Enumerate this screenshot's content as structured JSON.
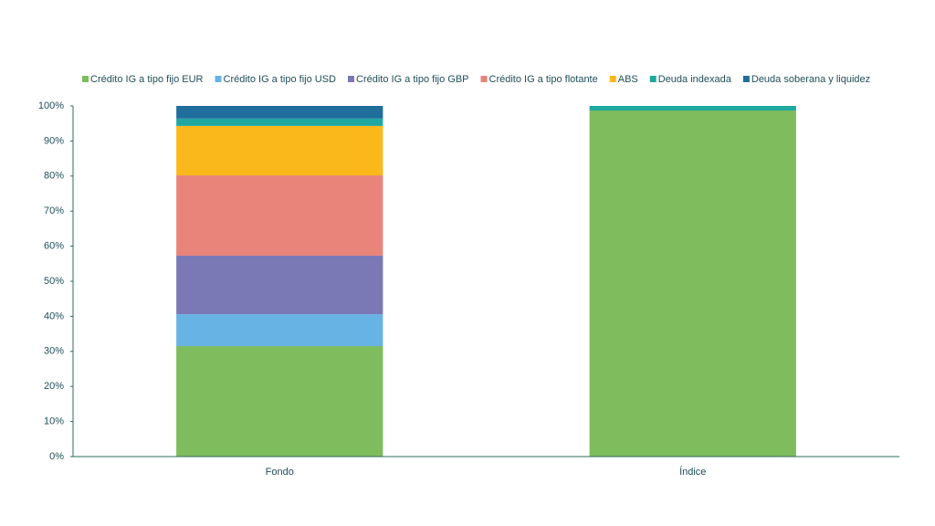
{
  "chart_data": {
    "type": "stacked_bar",
    "categories": [
      "Fondo",
      "Índice"
    ],
    "series": [
      {
        "name": "Crédito IG a tipo fijo EUR",
        "color": "#7fbc5e",
        "values": [
          31.5,
          98.7
        ]
      },
      {
        "name": "Crédito IG a tipo fijo USD",
        "color": "#67b3e3",
        "values": [
          9.1,
          0
        ]
      },
      {
        "name": "Crédito IG a tipo fijo GBP",
        "color": "#7b78b6",
        "values": [
          16.7,
          0
        ]
      },
      {
        "name": "Crédito IG a tipo flotante",
        "color": "#e8847a",
        "values": [
          22.9,
          0
        ]
      },
      {
        "name": "ABS",
        "color": "#fbb81a",
        "values": [
          14.1,
          0
        ]
      },
      {
        "name": "Deuda indexada",
        "color": "#20a8a0",
        "values": [
          2.1,
          1.3
        ]
      },
      {
        "name": "Deuda soberana y liquidez",
        "color": "#1f6e9c",
        "values": [
          3.6,
          0
        ]
      }
    ],
    "ylim": [
      0,
      100
    ],
    "yticks": [
      {
        "value": 0,
        "label": "0%"
      },
      {
        "value": 10,
        "label": "10%"
      },
      {
        "value": 20,
        "label": "20%"
      },
      {
        "value": 30,
        "label": "30%"
      },
      {
        "value": 40,
        "label": "40%"
      },
      {
        "value": 50,
        "label": "50%"
      },
      {
        "value": 60,
        "label": "60%"
      },
      {
        "value": 70,
        "label": "70%"
      },
      {
        "value": 80,
        "label": "80%"
      },
      {
        "value": 90,
        "label": "90%"
      },
      {
        "value": 100,
        "label": "100%"
      }
    ],
    "legend": "top"
  }
}
